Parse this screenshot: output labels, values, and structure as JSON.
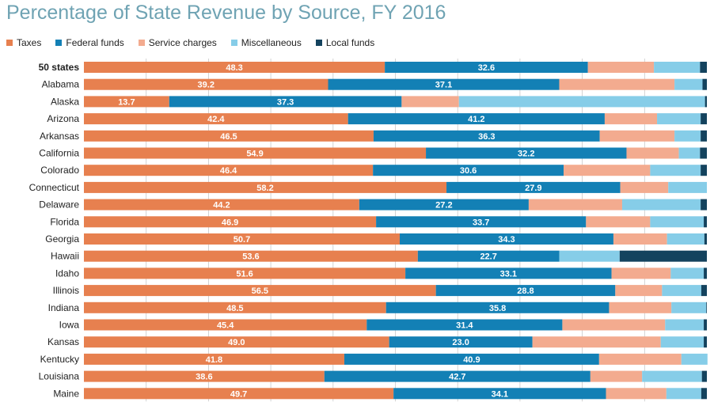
{
  "chart_data": {
    "type": "bar",
    "orientation": "horizontal",
    "stacked": true,
    "title": "Percentage of State Revenue by Source, FY 2016",
    "xlim": [
      0,
      100
    ],
    "legend_position": "top-left",
    "grid": true,
    "categories": [
      "50 states",
      "Alabama",
      "Alaska",
      "Arizona",
      "Arkansas",
      "California",
      "Colorado",
      "Connecticut",
      "Delaware",
      "Florida",
      "Georgia",
      "Hawaii",
      "Idaho",
      "Illinois",
      "Indiana",
      "Iowa",
      "Kansas",
      "Kentucky",
      "Louisiana",
      "Maine"
    ],
    "series": [
      {
        "name": "Taxes",
        "color": "#e7804f",
        "labeled": true,
        "values": [
          48.3,
          39.2,
          13.7,
          42.4,
          46.5,
          54.9,
          46.4,
          58.2,
          44.2,
          46.9,
          50.7,
          53.6,
          51.6,
          56.5,
          48.5,
          45.4,
          49.0,
          41.8,
          38.6,
          49.7
        ]
      },
      {
        "name": "Federal funds",
        "color": "#1380b5",
        "labeled": true,
        "values": [
          32.6,
          37.1,
          37.3,
          41.2,
          36.3,
          32.2,
          30.6,
          27.9,
          27.2,
          33.7,
          34.3,
          22.7,
          33.1,
          28.8,
          35.8,
          31.4,
          23.0,
          40.9,
          42.7,
          34.1
        ]
      },
      {
        "name": "Service charges",
        "color": "#f3ab8f",
        "labeled": false,
        "values": [
          10.6,
          18.5,
          9.2,
          8.4,
          12.0,
          8.4,
          13.9,
          7.7,
          15.0,
          10.3,
          8.6,
          0,
          9.5,
          7.5,
          10.0,
          16.5,
          20.6,
          13.2,
          8.3,
          9.7
        ]
      },
      {
        "name": "Miscellaneous",
        "color": "#86cde8",
        "labeled": false,
        "values": [
          7.4,
          4.5,
          39.5,
          7.0,
          4.2,
          3.4,
          8.1,
          6.2,
          12.6,
          8.6,
          6.0,
          9.7,
          5.3,
          6.3,
          5.6,
          6.2,
          6.9,
          4.2,
          9.6,
          5.6
        ]
      },
      {
        "name": "Local funds",
        "color": "#14435e",
        "labeled": false,
        "values": [
          1.1,
          0.7,
          0.3,
          1.0,
          1.0,
          1.1,
          1.0,
          0,
          1.0,
          0.5,
          0.4,
          14.0,
          0.5,
          0.9,
          0.1,
          0.5,
          0.5,
          0,
          0.8,
          0.9
        ]
      }
    ]
  }
}
